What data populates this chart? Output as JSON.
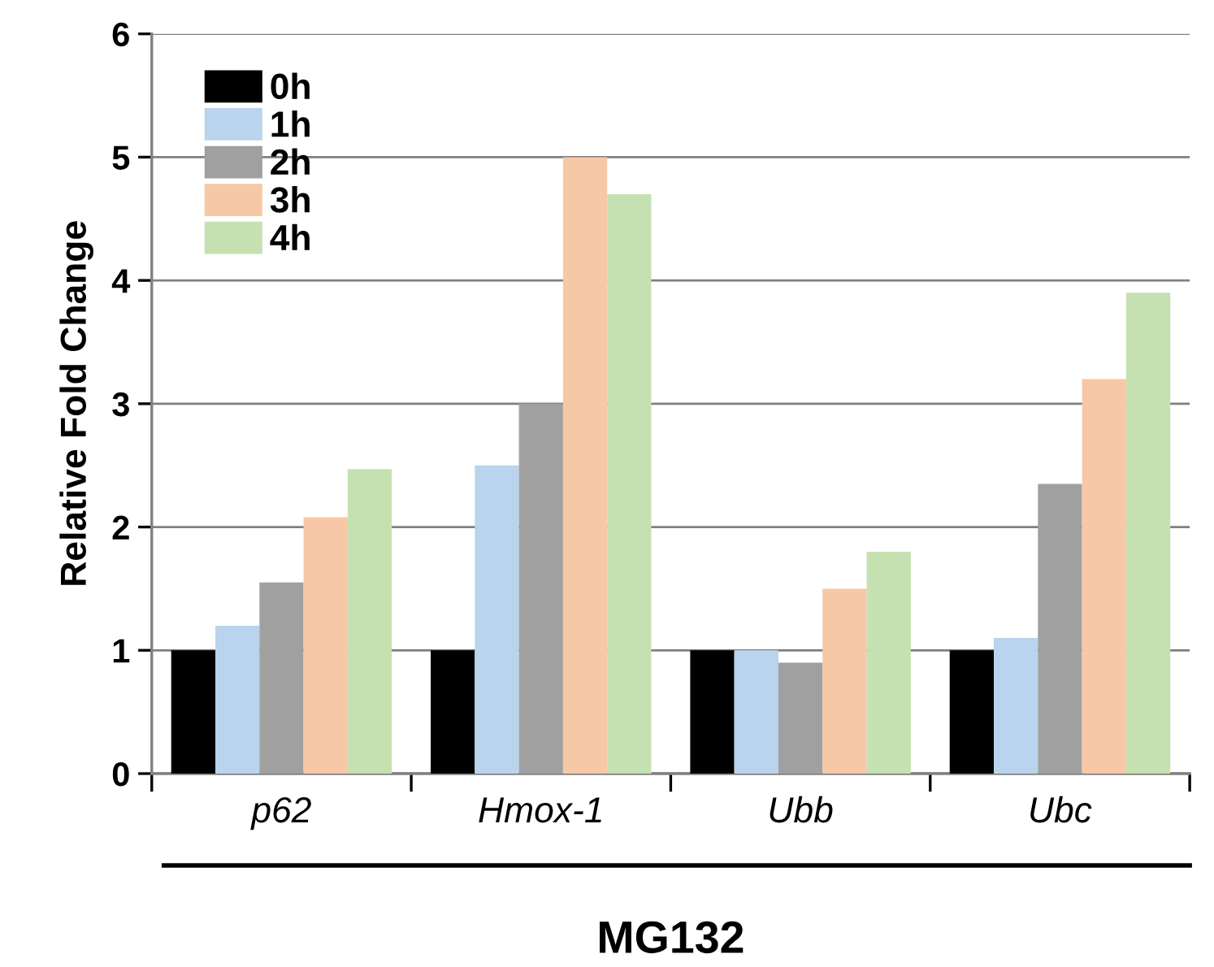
{
  "chart_data": {
    "type": "bar",
    "ylabel": "Relative Fold Change",
    "xlabel": "MG132",
    "categories": [
      "p62",
      "Hmox-1",
      "Ubb",
      "Ubc"
    ],
    "series": [
      {
        "name": "0h",
        "color": "#000000",
        "values": [
          1.0,
          1.0,
          1.0,
          1.0
        ]
      },
      {
        "name": "1h",
        "color": "#b9d4ec",
        "values": [
          1.2,
          2.5,
          1.0,
          1.1
        ]
      },
      {
        "name": "2h",
        "color": "#a0a0a0",
        "values": [
          1.55,
          3.0,
          0.9,
          2.35
        ]
      },
      {
        "name": "3h",
        "color": "#f7c8a6",
        "values": [
          2.08,
          5.0,
          1.5,
          3.2
        ]
      },
      {
        "name": "4h",
        "color": "#c5e1b1",
        "values": [
          2.47,
          4.7,
          1.8,
          3.9
        ]
      }
    ],
    "ylim": [
      0,
      6
    ],
    "yticks": [
      0,
      1,
      2,
      3,
      4,
      5,
      6
    ],
    "grid": "y",
    "legend": "top left"
  }
}
